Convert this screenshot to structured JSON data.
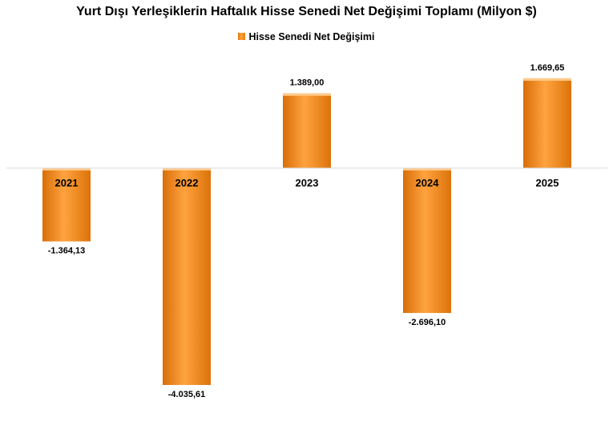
{
  "chart_data": {
    "type": "bar",
    "title": "Yurt Dışı Yerleşiklerin Haftalık Hisse Senedi Net Değişimi Toplamı (Milyon $)",
    "categories": [
      "2021",
      "2022",
      "2023",
      "2024",
      "2025"
    ],
    "series": [
      {
        "name": "Hisse Senedi Net Değişimi",
        "values": [
          -1364.13,
          -4035.61,
          1389.0,
          -2696.1,
          1669.65
        ],
        "labels": [
          "-1.364,13",
          "-4.035,61",
          "1.389,00",
          "-2.696,10",
          "1.669,65"
        ]
      }
    ],
    "xlabel": "",
    "ylabel": "",
    "ylim": [
      -5000,
      2500
    ],
    "grid": false,
    "legend_position": "top-center",
    "colors": {
      "bar_edge": "#d86e08",
      "bar_center": "#ffa33f",
      "bar_top": "#ffc98a",
      "axis": "#d9d9d9"
    }
  }
}
